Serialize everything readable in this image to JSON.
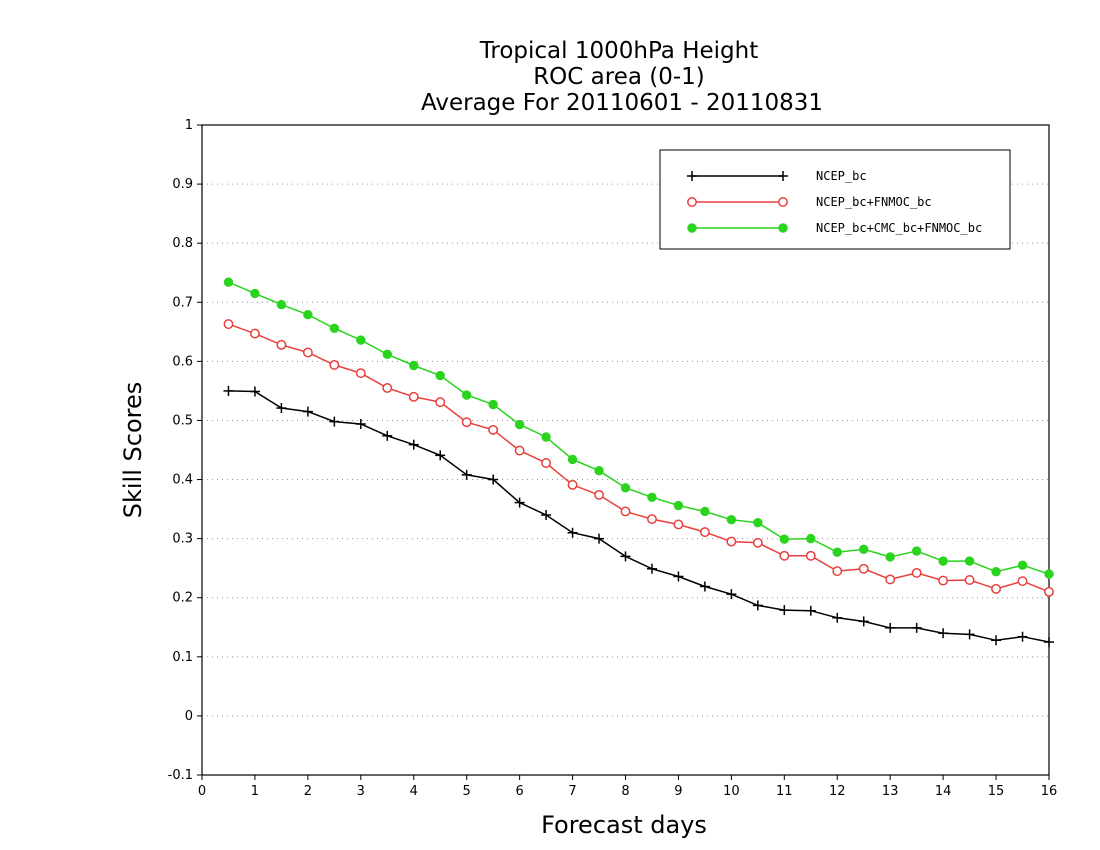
{
  "chart_data": {
    "type": "line",
    "title": [
      "Tropical 1000hPa Height",
      "ROC area (0-1)",
      "Average For 20110601 - 20110831"
    ],
    "xlabel": "Forecast days",
    "ylabel": "Skill Scores",
    "xlim": [
      0,
      16
    ],
    "ylim": [
      -0.1,
      1
    ],
    "xticks": [
      "0",
      "1",
      "2",
      "3",
      "4",
      "5",
      "6",
      "7",
      "8",
      "9",
      "10",
      "11",
      "12",
      "13",
      "14",
      "15",
      "16"
    ],
    "yticks": [
      "-0.1",
      "0",
      "0.1",
      "0.2",
      "0.3",
      "0.4",
      "0.5",
      "0.6",
      "0.7",
      "0.8",
      "0.9",
      "1"
    ],
    "grid": "horizontal dotted",
    "legend_position": "top-right",
    "x": [
      0.5,
      1,
      1.5,
      2,
      2.5,
      3,
      3.5,
      4,
      4.5,
      5,
      5.5,
      6,
      6.5,
      7,
      7.5,
      8,
      8.5,
      9,
      9.5,
      10,
      10.5,
      11,
      11.5,
      12,
      12.5,
      13,
      13.5,
      14,
      14.5,
      15,
      15.5,
      16
    ],
    "series": [
      {
        "name": "NCEP_bc",
        "color": "#000000",
        "marker": "plus",
        "values": [
          0.55,
          0.549,
          0.521,
          0.515,
          0.498,
          0.494,
          0.474,
          0.459,
          0.441,
          0.408,
          0.4,
          0.361,
          0.34,
          0.31,
          0.3,
          0.27,
          0.249,
          0.236,
          0.219,
          0.206,
          0.187,
          0.179,
          0.178,
          0.166,
          0.16,
          0.149,
          0.149,
          0.14,
          0.138,
          0.128,
          0.134,
          0.125
        ]
      },
      {
        "name": "NCEP_bc+FNMOC_bc",
        "color": "#e8403c",
        "marker": "open-circle",
        "values": [
          0.663,
          0.647,
          0.628,
          0.615,
          0.594,
          0.58,
          0.555,
          0.54,
          0.531,
          0.497,
          0.484,
          0.449,
          0.428,
          0.391,
          0.374,
          0.346,
          0.333,
          0.324,
          0.311,
          0.295,
          0.293,
          0.271,
          0.271,
          0.245,
          0.249,
          0.231,
          0.242,
          0.229,
          0.23,
          0.215,
          0.228,
          0.21
        ]
      },
      {
        "name": "NCEP_bc+CMC_bc+FNMOC_bc",
        "color": "#2ad31e",
        "marker": "filled-circle",
        "values": [
          0.734,
          0.715,
          0.696,
          0.679,
          0.656,
          0.636,
          0.612,
          0.593,
          0.576,
          0.543,
          0.527,
          0.493,
          0.472,
          0.434,
          0.415,
          0.386,
          0.37,
          0.356,
          0.346,
          0.332,
          0.327,
          0.299,
          0.3,
          0.277,
          0.282,
          0.269,
          0.279,
          0.262,
          0.262,
          0.244,
          0.255,
          0.24
        ]
      }
    ]
  }
}
